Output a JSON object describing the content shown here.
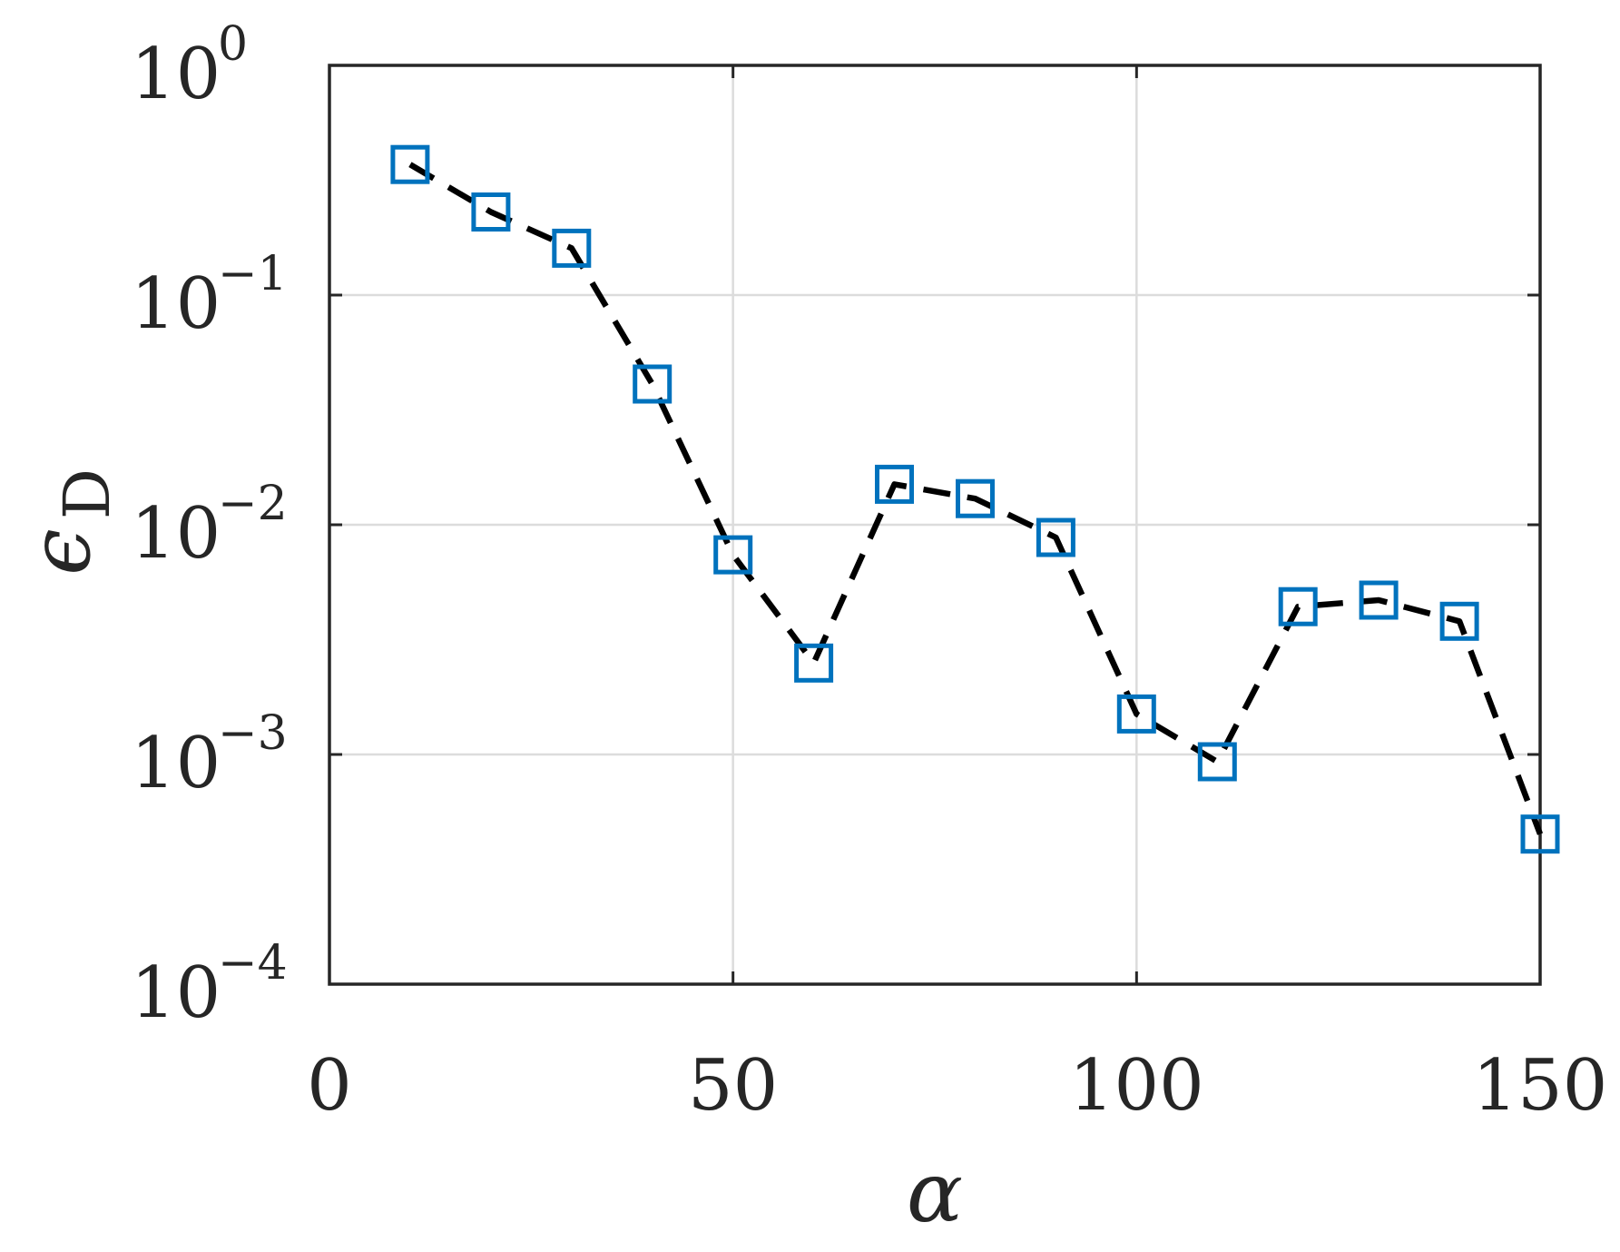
{
  "chart_data": {
    "type": "line",
    "title": "",
    "xlabel": "α",
    "ylabel": {
      "symbol": "ϵ",
      "subscript": "D"
    },
    "xlim": [
      0,
      150
    ],
    "ylim": [
      0.0001,
      1
    ],
    "yscale": "log",
    "grid": true,
    "x_ticks": [
      {
        "value": 0,
        "label": "0"
      },
      {
        "value": 50,
        "label": "50"
      },
      {
        "value": 100,
        "label": "100"
      },
      {
        "value": 150,
        "label": "150"
      }
    ],
    "y_ticks": [
      {
        "value": 1,
        "base": "10",
        "exponent": "0"
      },
      {
        "value": 0.1,
        "base": "10",
        "exponent": "−1"
      },
      {
        "value": 0.01,
        "base": "10",
        "exponent": "−2"
      },
      {
        "value": 0.001,
        "base": "10",
        "exponent": "−3"
      },
      {
        "value": 0.0001,
        "base": "10",
        "exponent": "−4"
      }
    ],
    "series": [
      {
        "line_style": "dashed",
        "line_color": "#000000",
        "marker": "square",
        "marker_color": "#0072BD",
        "x": [
          10,
          20,
          30,
          40,
          50,
          60,
          70,
          80,
          90,
          100,
          110,
          120,
          130,
          140,
          150
        ],
        "y": [
          0.37,
          0.23,
          0.16,
          0.041,
          0.0074,
          0.0025,
          0.015,
          0.013,
          0.0088,
          0.0015,
          0.00093,
          0.0044,
          0.0047,
          0.0038,
          0.00045
        ]
      }
    ]
  }
}
